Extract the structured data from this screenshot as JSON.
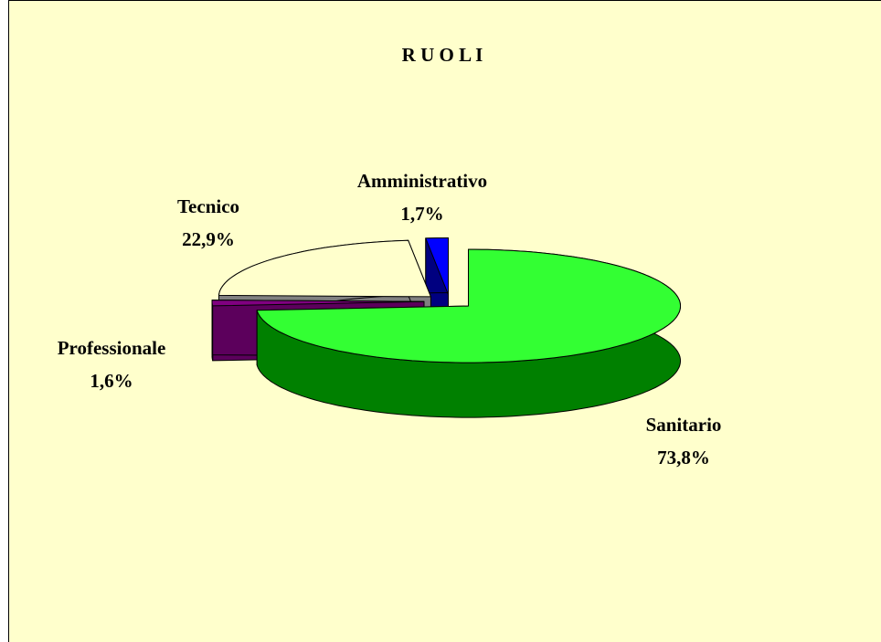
{
  "chart_data": {
    "type": "pie3d",
    "title": "R U O L I",
    "categories": [
      "Sanitario",
      "Professionale",
      "Tecnico",
      "Amministrativo"
    ],
    "values": [
      73.8,
      1.6,
      22.9,
      1.7
    ],
    "value_labels": [
      "73,8%",
      "1,6%",
      "22,9%",
      "1,7%"
    ],
    "colors": [
      "#33ff33",
      "#800080",
      "#ffffcc",
      "#0000ff"
    ],
    "side_colors": [
      "#008000",
      "#5c005c",
      "#808080",
      "#000080"
    ]
  }
}
